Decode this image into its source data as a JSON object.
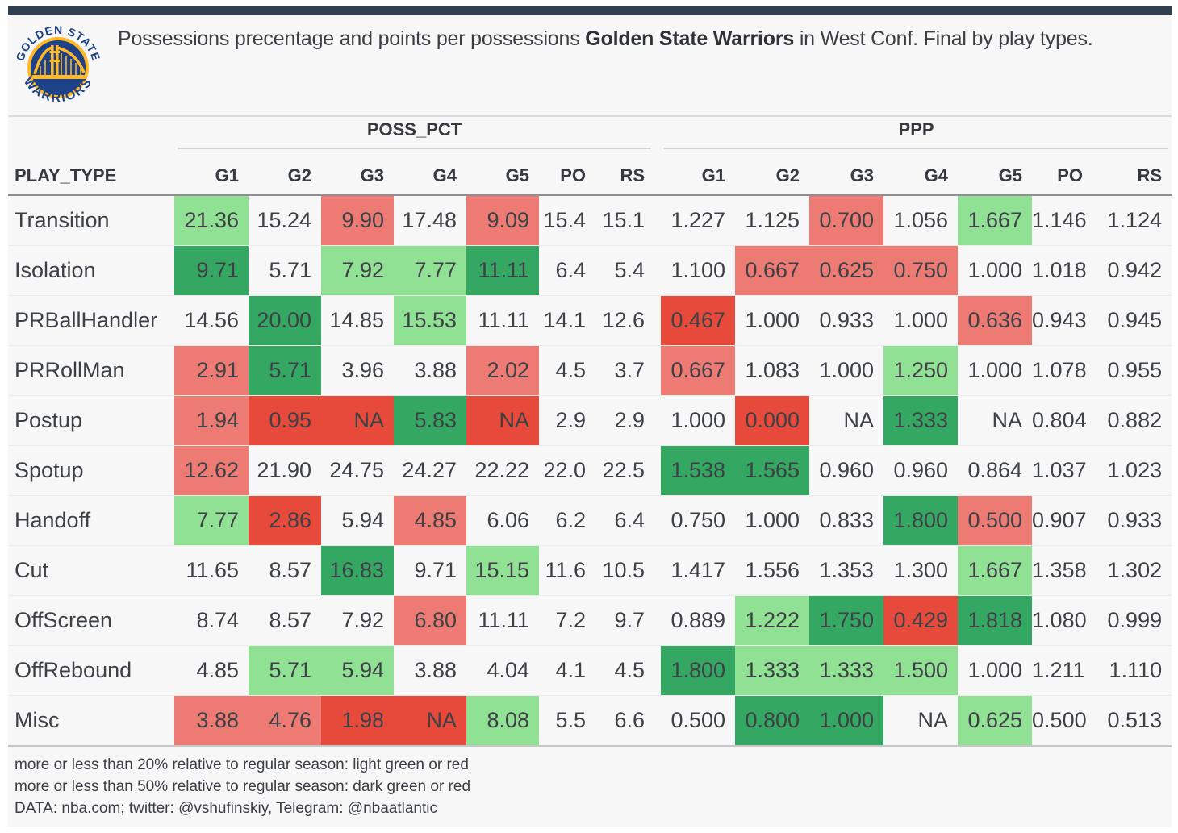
{
  "page": {
    "title": {
      "prefix": "Possessions precentage and points per possessions ",
      "team": "Golden State Warriors",
      "suffix": " in West Conf. Final by play types."
    },
    "logo": {
      "top_text": "GOLDEN STATE",
      "bottom_text": "WARRIORS"
    }
  },
  "chart_data": {
    "type": "table",
    "title": "Possessions precentage and points per possessions Golden State Warriors in West Conf. Final by play types.",
    "row_header": "PLAY_TYPE",
    "column_groups": [
      "POSS_PCT",
      "PPP"
    ],
    "columns": [
      "G1",
      "G2",
      "G3",
      "G4",
      "G5",
      "PO",
      "RS"
    ],
    "highlight_meaning": {
      "light_green": "more than 20% above regular season",
      "dark_green": "more than 50% above regular season",
      "light_red": "more than 20% below regular season",
      "dark_red": "more than 50% below regular season"
    },
    "rows": [
      {
        "play_type": "Transition",
        "poss_pct": [
          {
            "v": "21.36",
            "hl": "light_green"
          },
          {
            "v": "15.24"
          },
          {
            "v": "9.90",
            "hl": "light_red"
          },
          {
            "v": "17.48"
          },
          {
            "v": "9.09",
            "hl": "light_red"
          },
          {
            "v": "15.4"
          },
          {
            "v": "15.1"
          }
        ],
        "ppp": [
          {
            "v": "1.227"
          },
          {
            "v": "1.125"
          },
          {
            "v": "0.700",
            "hl": "light_red"
          },
          {
            "v": "1.056"
          },
          {
            "v": "1.667",
            "hl": "light_green"
          },
          {
            "v": "1.146"
          },
          {
            "v": "1.124"
          }
        ]
      },
      {
        "play_type": "Isolation",
        "poss_pct": [
          {
            "v": "9.71",
            "hl": "dark_green"
          },
          {
            "v": "5.71"
          },
          {
            "v": "7.92",
            "hl": "light_green"
          },
          {
            "v": "7.77",
            "hl": "light_green"
          },
          {
            "v": "11.11",
            "hl": "dark_green"
          },
          {
            "v": "6.4"
          },
          {
            "v": "5.4"
          }
        ],
        "ppp": [
          {
            "v": "1.100"
          },
          {
            "v": "0.667",
            "hl": "light_red"
          },
          {
            "v": "0.625",
            "hl": "light_red"
          },
          {
            "v": "0.750",
            "hl": "light_red"
          },
          {
            "v": "1.000"
          },
          {
            "v": "1.018"
          },
          {
            "v": "0.942"
          }
        ]
      },
      {
        "play_type": "PRBallHandler",
        "poss_pct": [
          {
            "v": "14.56"
          },
          {
            "v": "20.00",
            "hl": "dark_green"
          },
          {
            "v": "14.85"
          },
          {
            "v": "15.53",
            "hl": "light_green"
          },
          {
            "v": "11.11"
          },
          {
            "v": "14.1"
          },
          {
            "v": "12.6"
          }
        ],
        "ppp": [
          {
            "v": "0.467",
            "hl": "dark_red"
          },
          {
            "v": "1.000"
          },
          {
            "v": "0.933"
          },
          {
            "v": "1.000"
          },
          {
            "v": "0.636",
            "hl": "light_red"
          },
          {
            "v": "0.943"
          },
          {
            "v": "0.945"
          }
        ]
      },
      {
        "play_type": "PRRollMan",
        "poss_pct": [
          {
            "v": "2.91",
            "hl": "light_red"
          },
          {
            "v": "5.71",
            "hl": "dark_green"
          },
          {
            "v": "3.96"
          },
          {
            "v": "3.88"
          },
          {
            "v": "2.02",
            "hl": "light_red"
          },
          {
            "v": "4.5"
          },
          {
            "v": "3.7"
          }
        ],
        "ppp": [
          {
            "v": "0.667",
            "hl": "light_red"
          },
          {
            "v": "1.083"
          },
          {
            "v": "1.000"
          },
          {
            "v": "1.250",
            "hl": "light_green"
          },
          {
            "v": "1.000"
          },
          {
            "v": "1.078"
          },
          {
            "v": "0.955"
          }
        ]
      },
      {
        "play_type": "Postup",
        "poss_pct": [
          {
            "v": "1.94",
            "hl": "light_red"
          },
          {
            "v": "0.95",
            "hl": "dark_red"
          },
          {
            "v": "NA",
            "hl": "dark_red"
          },
          {
            "v": "5.83",
            "hl": "dark_green"
          },
          {
            "v": "NA",
            "hl": "dark_red"
          },
          {
            "v": "2.9"
          },
          {
            "v": "2.9"
          }
        ],
        "ppp": [
          {
            "v": "1.000"
          },
          {
            "v": "0.000",
            "hl": "dark_red"
          },
          {
            "v": "NA"
          },
          {
            "v": "1.333",
            "hl": "dark_green"
          },
          {
            "v": "NA"
          },
          {
            "v": "0.804"
          },
          {
            "v": "0.882"
          }
        ]
      },
      {
        "play_type": "Spotup",
        "poss_pct": [
          {
            "v": "12.62",
            "hl": "light_red"
          },
          {
            "v": "21.90"
          },
          {
            "v": "24.75"
          },
          {
            "v": "24.27"
          },
          {
            "v": "22.22"
          },
          {
            "v": "22.0"
          },
          {
            "v": "22.5"
          }
        ],
        "ppp": [
          {
            "v": "1.538",
            "hl": "dark_green"
          },
          {
            "v": "1.565",
            "hl": "dark_green"
          },
          {
            "v": "0.960"
          },
          {
            "v": "0.960"
          },
          {
            "v": "0.864"
          },
          {
            "v": "1.037"
          },
          {
            "v": "1.023"
          }
        ]
      },
      {
        "play_type": "Handoff",
        "poss_pct": [
          {
            "v": "7.77",
            "hl": "light_green"
          },
          {
            "v": "2.86",
            "hl": "dark_red"
          },
          {
            "v": "5.94"
          },
          {
            "v": "4.85",
            "hl": "light_red"
          },
          {
            "v": "6.06"
          },
          {
            "v": "6.2"
          },
          {
            "v": "6.4"
          }
        ],
        "ppp": [
          {
            "v": "0.750"
          },
          {
            "v": "1.000"
          },
          {
            "v": "0.833"
          },
          {
            "v": "1.800",
            "hl": "dark_green"
          },
          {
            "v": "0.500",
            "hl": "light_red"
          },
          {
            "v": "0.907"
          },
          {
            "v": "0.933"
          }
        ]
      },
      {
        "play_type": "Cut",
        "poss_pct": [
          {
            "v": "11.65"
          },
          {
            "v": "8.57"
          },
          {
            "v": "16.83",
            "hl": "dark_green"
          },
          {
            "v": "9.71"
          },
          {
            "v": "15.15",
            "hl": "light_green"
          },
          {
            "v": "11.6"
          },
          {
            "v": "10.5"
          }
        ],
        "ppp": [
          {
            "v": "1.417"
          },
          {
            "v": "1.556"
          },
          {
            "v": "1.353"
          },
          {
            "v": "1.300"
          },
          {
            "v": "1.667",
            "hl": "light_green"
          },
          {
            "v": "1.358"
          },
          {
            "v": "1.302"
          }
        ]
      },
      {
        "play_type": "OffScreen",
        "poss_pct": [
          {
            "v": "8.74"
          },
          {
            "v": "8.57"
          },
          {
            "v": "7.92"
          },
          {
            "v": "6.80",
            "hl": "light_red"
          },
          {
            "v": "11.11"
          },
          {
            "v": "7.2"
          },
          {
            "v": "9.7"
          }
        ],
        "ppp": [
          {
            "v": "0.889"
          },
          {
            "v": "1.222",
            "hl": "light_green"
          },
          {
            "v": "1.750",
            "hl": "dark_green"
          },
          {
            "v": "0.429",
            "hl": "dark_red"
          },
          {
            "v": "1.818",
            "hl": "dark_green"
          },
          {
            "v": "1.080"
          },
          {
            "v": "0.999"
          }
        ]
      },
      {
        "play_type": "OffRebound",
        "poss_pct": [
          {
            "v": "4.85"
          },
          {
            "v": "5.71",
            "hl": "light_green"
          },
          {
            "v": "5.94",
            "hl": "light_green"
          },
          {
            "v": "3.88"
          },
          {
            "v": "4.04"
          },
          {
            "v": "4.1"
          },
          {
            "v": "4.5"
          }
        ],
        "ppp": [
          {
            "v": "1.800",
            "hl": "dark_green"
          },
          {
            "v": "1.333",
            "hl": "light_green"
          },
          {
            "v": "1.333",
            "hl": "light_green"
          },
          {
            "v": "1.500",
            "hl": "light_green"
          },
          {
            "v": "1.000"
          },
          {
            "v": "1.211"
          },
          {
            "v": "1.110"
          }
        ]
      },
      {
        "play_type": "Misc",
        "poss_pct": [
          {
            "v": "3.88",
            "hl": "light_red"
          },
          {
            "v": "4.76",
            "hl": "light_red"
          },
          {
            "v": "1.98",
            "hl": "dark_red"
          },
          {
            "v": "NA",
            "hl": "dark_red"
          },
          {
            "v": "8.08",
            "hl": "light_green"
          },
          {
            "v": "5.5"
          },
          {
            "v": "6.6"
          }
        ],
        "ppp": [
          {
            "v": "0.500"
          },
          {
            "v": "0.800",
            "hl": "dark_green"
          },
          {
            "v": "1.000",
            "hl": "dark_green"
          },
          {
            "v": "NA"
          },
          {
            "v": "0.625",
            "hl": "light_green"
          },
          {
            "v": "0.500"
          },
          {
            "v": "0.513"
          }
        ]
      }
    ]
  },
  "footer": {
    "lines": [
      "more or less than 20% relative to regular season: light green or red",
      "more or less than 50% relative to regular season: dark green or red",
      "DATA: nba.com; twitter: @vshufinskiy, Telegram: @nbaatlantic"
    ]
  },
  "colors": {
    "light_green": "#90E193",
    "dark_green": "#34A862",
    "light_red": "#EE7B73",
    "dark_red": "#E74A3B",
    "bar": "#2E3F4F",
    "team_blue": "#1D428A",
    "team_gold": "#FDB927"
  }
}
